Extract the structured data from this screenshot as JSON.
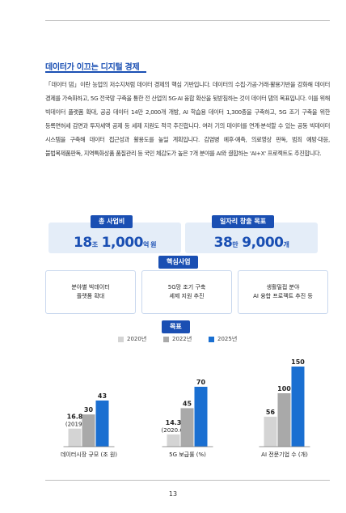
{
  "page": {
    "section_title": "데이터가 이끄는 디지털 경제",
    "body": "「데이터 댐」이란 농업의 저수지처럼 데이터 경제의 핵심 기반입니다. 데이터의 수집·가공·거래·활용기반을 강화해 데이터 경제를 가속화하고, 5G 전국망 구축을 통한 전 산업의 5G·AI 융합 확산을 뒷받침하는 것이 데이터 댐의 목표입니다. 이를 위해 빅데이터 플랫폼 확대, 공공 데이터 14만 2,000개 개방, AI 학습용 데이터 1,300종을 구축하고, 5G 조기 구축을 위한 등록면허세 감면과 투자세액 공제 등 세제 지원도 적극 추진합니다. 여러 기의 데이터를 연계·분석할 수 있는 공동 빅데이터 시스템을 구축해 데이터 접근성과 활용도를 높일 계획입니다. 감염병 예후·예측, 의료영상 판독, 범죄 예방·대응, 불법복제품판독, 지역특화상품 품질관리 등 국민 체감도가 높은 7개 분야를 AI와 결합하는 'AI+X' 프로젝트도 추진합니다.",
    "page_number": "13"
  },
  "stats": {
    "budget": {
      "label": "총 사업비",
      "num1": "18",
      "unit1": "조",
      "num2": "1,000",
      "unit2": "억 원"
    },
    "jobs": {
      "label": "일자리 창출 목표",
      "num1": "38",
      "unit1": "만",
      "num2": "9,000",
      "unit2": "개"
    }
  },
  "core": {
    "label": "핵심사업",
    "items": [
      {
        "line1": "분야별 빅데이터",
        "line2": "플랫폼 확대"
      },
      {
        "line1": "5G망 조기 구축",
        "line2": "세제 지원 추진"
      },
      {
        "line1": "생활밀접 분야",
        "line2": "AI 융합 프로젝트 추진 등"
      }
    ]
  },
  "goal": {
    "label": "목표"
  },
  "colors": {
    "accent": "#1a4fb3",
    "light_box": "#e4edf8",
    "bar2020": "#d4d4d4",
    "bar2022": "#a9a9a9",
    "bar2025": "#1a6fd1"
  },
  "chart_data": {
    "type": "bar",
    "categories": [
      "데이터시장 규모 (조 원)",
      "5G 보급률 (%)",
      "AI 전문기업 수 (개)"
    ],
    "series": [
      {
        "name": "2020년",
        "values": [
          16.8,
          14.3,
          56
        ],
        "labels": [
          "16.8",
          "14.3",
          "56"
        ],
        "notes": [
          "(2019)",
          "(2020.6)",
          ""
        ]
      },
      {
        "name": "2022년",
        "values": [
          30,
          45,
          100
        ],
        "labels": [
          "30",
          "45",
          "100"
        ]
      },
      {
        "name": "2025년",
        "values": [
          43,
          70,
          150
        ],
        "labels": [
          "43",
          "70",
          "150"
        ]
      }
    ],
    "legend": "top"
  }
}
